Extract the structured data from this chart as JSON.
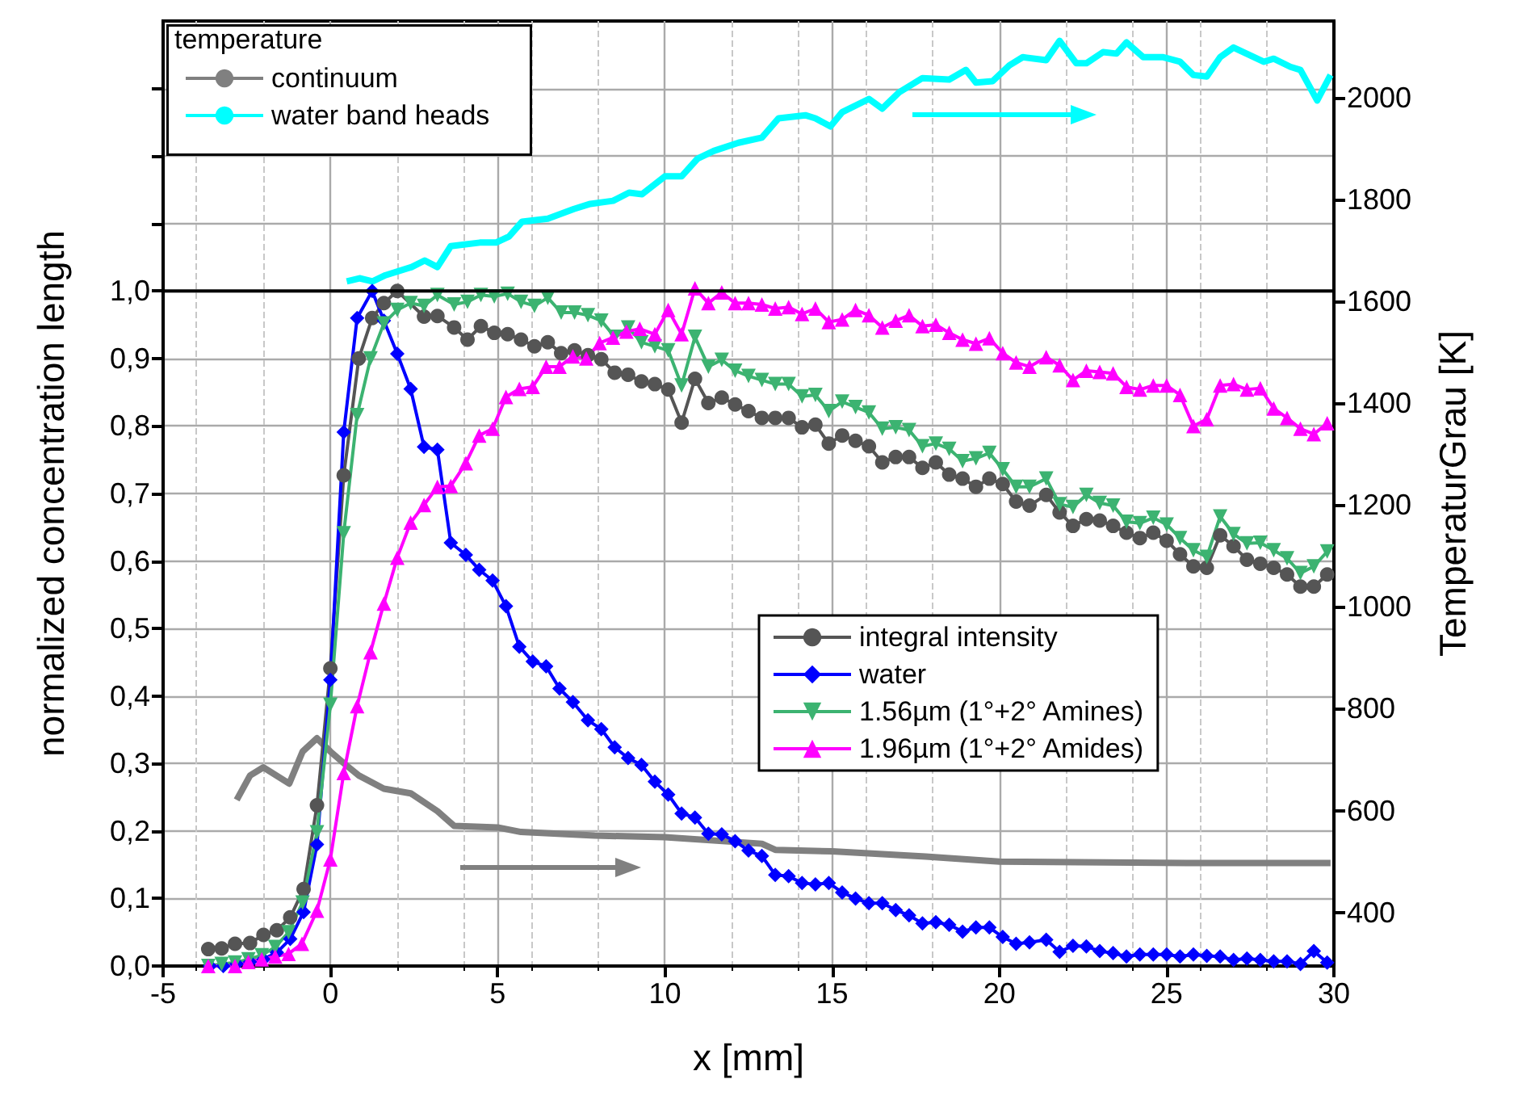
{
  "chart_data": {
    "type": "line",
    "xlabel": "x [mm]",
    "ylabel": "normalized concentration length",
    "y2label": "TemperaturGrau [K]",
    "legend_title": "temperature",
    "xlim": [
      -5,
      30
    ],
    "xticks": [
      -5,
      0,
      5,
      10,
      15,
      20,
      25,
      30
    ],
    "ylim": [
      0,
      1.4
    ],
    "yticks": [
      {
        "value": 0,
        "label": "0,0"
      },
      {
        "value": 0.1,
        "label": "0,1"
      },
      {
        "value": 0.2,
        "label": "0,2"
      },
      {
        "value": 0.3,
        "label": "0,3"
      },
      {
        "value": 0.4,
        "label": "0,4"
      },
      {
        "value": 0.5,
        "label": "0,5"
      },
      {
        "value": 0.6,
        "label": "0,6"
      },
      {
        "value": 0.7,
        "label": "0,7"
      },
      {
        "value": 0.8,
        "label": "0,8"
      },
      {
        "value": 0.9,
        "label": "0,9"
      },
      {
        "value": 1.0,
        "label": "1,0"
      },
      {
        "value": 1.1,
        "label": null
      },
      {
        "value": 1.2,
        "label": null
      },
      {
        "value": 1.3,
        "label": null
      }
    ],
    "y2lim": [
      295,
      2150
    ],
    "y2ticks": [
      400,
      600,
      800,
      1000,
      1200,
      1400,
      1600,
      1800,
      2000
    ],
    "grid": true,
    "legend": "top left",
    "ref_lines": [
      {
        "axis": "y",
        "value": 1.0,
        "color": "#000000"
      }
    ],
    "series": [
      {
        "name": "integral intensity",
        "color": "#555555",
        "marker": "circle",
        "x": [
          -3.65,
          -3.25,
          -2.85,
          -2.4,
          -2.0,
          -1.6,
          -1.2,
          -0.8,
          -0.4,
          0.0,
          0.4,
          0.85,
          1.25,
          1.6,
          2.0,
          2.8,
          3.2,
          3.7,
          4.1,
          4.5,
          4.9,
          5.3,
          5.7,
          6.1,
          6.5,
          6.9,
          7.3,
          7.7,
          8.1,
          8.5,
          8.9,
          9.3,
          9.7,
          10.1,
          10.5,
          10.9,
          11.3,
          11.7,
          12.1,
          12.5,
          12.9,
          13.3,
          13.7,
          14.1,
          14.5,
          14.9,
          15.3,
          15.7,
          16.1,
          16.5,
          16.9,
          17.3,
          17.7,
          18.1,
          18.5,
          18.9,
          19.3,
          19.7,
          20.1,
          20.5,
          20.9,
          21.4,
          21.8,
          22.2,
          22.6,
          23.0,
          23.4,
          23.8,
          24.2,
          24.6,
          25.0,
          25.4,
          25.8,
          26.2,
          26.6,
          27.0,
          27.4,
          27.8,
          28.2,
          28.6,
          29.0,
          29.4,
          29.8
        ],
        "values": [
          0.025,
          0.026,
          0.033,
          0.034,
          0.046,
          0.053,
          0.072,
          0.114,
          0.238,
          0.441,
          0.727,
          0.9,
          0.96,
          0.982,
          1.0,
          0.962,
          0.963,
          0.946,
          0.928,
          0.948,
          0.938,
          0.936,
          0.928,
          0.918,
          0.924,
          0.908,
          0.912,
          0.905,
          0.899,
          0.879,
          0.876,
          0.866,
          0.862,
          0.854,
          0.805,
          0.87,
          0.834,
          0.842,
          0.832,
          0.822,
          0.812,
          0.812,
          0.812,
          0.798,
          0.802,
          0.774,
          0.786,
          0.778,
          0.77,
          0.746,
          0.754,
          0.754,
          0.738,
          0.746,
          0.728,
          0.722,
          0.71,
          0.722,
          0.714,
          0.688,
          0.682,
          0.698,
          0.672,
          0.652,
          0.662,
          0.66,
          0.652,
          0.642,
          0.634,
          0.642,
          0.63,
          0.61,
          0.592,
          0.59,
          0.638,
          0.622,
          0.602,
          0.596,
          0.59,
          0.58,
          0.562,
          0.562,
          0.58
        ]
      },
      {
        "name": "water",
        "color": "#0000ff",
        "marker": "diamond",
        "x": [
          -3.6,
          -3.2,
          -2.8,
          -2.4,
          -2.0,
          -1.6,
          -1.2,
          -0.8,
          -0.4,
          0.0,
          0.4,
          0.8,
          1.25,
          1.6,
          2.0,
          2.4,
          2.8,
          3.2,
          3.6,
          4.05,
          4.45,
          4.85,
          5.25,
          5.65,
          6.05,
          6.45,
          6.85,
          7.25,
          7.7,
          8.1,
          8.5,
          8.9,
          9.3,
          9.7,
          10.1,
          10.5,
          10.9,
          11.3,
          11.7,
          12.1,
          12.5,
          12.9,
          13.3,
          13.7,
          14.1,
          14.5,
          14.9,
          15.3,
          15.7,
          16.1,
          16.5,
          16.9,
          17.3,
          17.7,
          18.1,
          18.5,
          18.9,
          19.3,
          19.7,
          20.1,
          20.5,
          20.9,
          21.4,
          21.8,
          22.2,
          22.6,
          23.0,
          23.4,
          23.8,
          24.2,
          24.6,
          25.0,
          25.4,
          25.8,
          26.2,
          26.6,
          27.0,
          27.4,
          27.8,
          28.2,
          28.6,
          29.0,
          29.4,
          29.8
        ],
        "values": [
          0,
          0,
          0.003,
          0.006,
          0.01,
          0.02,
          0.04,
          0.08,
          0.18,
          0.424,
          0.791,
          0.96,
          1.0,
          0.956,
          0.907,
          0.855,
          0.769,
          0.765,
          0.627,
          0.609,
          0.587,
          0.571,
          0.533,
          0.473,
          0.451,
          0.444,
          0.411,
          0.391,
          0.364,
          0.351,
          0.324,
          0.308,
          0.298,
          0.273,
          0.254,
          0.226,
          0.22,
          0.196,
          0.195,
          0.185,
          0.171,
          0.163,
          0.135,
          0.133,
          0.123,
          0.121,
          0.123,
          0.109,
          0.1,
          0.093,
          0.093,
          0.083,
          0.075,
          0.063,
          0.065,
          0.061,
          0.051,
          0.057,
          0.057,
          0.043,
          0.033,
          0.035,
          0.039,
          0.021,
          0.03,
          0.029,
          0.022,
          0.019,
          0.014,
          0.017,
          0.017,
          0.017,
          0.014,
          0.017,
          0.015,
          0.014,
          0.009,
          0.011,
          0.009,
          0.007,
          0.007,
          0.003,
          0.022,
          0.005
        ]
      },
      {
        "name": "1.56µm (1°+2° Amines)",
        "color": "#3cb371",
        "marker": "triangle-down",
        "x": [
          -3.65,
          -3.25,
          -2.85,
          -2.45,
          -2.05,
          -1.65,
          -1.25,
          -0.83,
          -0.4,
          0.0,
          0.4,
          0.8,
          1.2,
          1.6,
          2.0,
          2.4,
          2.8,
          3.2,
          3.7,
          4.1,
          4.5,
          4.9,
          5.3,
          5.7,
          6.1,
          6.5,
          6.9,
          7.3,
          7.7,
          8.1,
          8.5,
          8.9,
          9.3,
          9.7,
          10.1,
          10.5,
          10.9,
          11.3,
          11.7,
          12.1,
          12.5,
          12.9,
          13.3,
          13.7,
          14.1,
          14.5,
          14.9,
          15.3,
          15.7,
          16.1,
          16.5,
          16.9,
          17.3,
          17.7,
          18.1,
          18.5,
          18.9,
          19.3,
          19.7,
          20.1,
          20.5,
          20.9,
          21.4,
          21.8,
          22.2,
          22.6,
          23.0,
          23.4,
          23.8,
          24.2,
          24.6,
          25.0,
          25.4,
          25.8,
          26.2,
          26.6,
          27.0,
          27.4,
          27.8,
          28.2,
          28.6,
          29.0,
          29.4,
          29.8
        ],
        "values": [
          0,
          0.003,
          0.005,
          0.01,
          0.016,
          0.028,
          0.05,
          0.094,
          0.198,
          0.387,
          0.641,
          0.816,
          0.9,
          0.952,
          0.972,
          0.982,
          0.978,
          0.994,
          0.98,
          0.984,
          0.994,
          0.992,
          0.996,
          0.984,
          0.978,
          0.99,
          0.968,
          0.968,
          0.964,
          0.956,
          0.932,
          0.946,
          0.924,
          0.918,
          0.912,
          0.86,
          0.932,
          0.888,
          0.898,
          0.882,
          0.874,
          0.868,
          0.862,
          0.862,
          0.844,
          0.846,
          0.822,
          0.836,
          0.828,
          0.82,
          0.796,
          0.798,
          0.794,
          0.77,
          0.774,
          0.766,
          0.748,
          0.752,
          0.76,
          0.736,
          0.71,
          0.71,
          0.722,
          0.684,
          0.68,
          0.698,
          0.686,
          0.682,
          0.658,
          0.656,
          0.664,
          0.654,
          0.634,
          0.616,
          0.606,
          0.666,
          0.64,
          0.626,
          0.627,
          0.616,
          0.604,
          0.582,
          0.592,
          0.614
        ]
      },
      {
        "name": "1.96µm (1°+2° Amides)",
        "color": "#ff00ff",
        "marker": "triangle",
        "x": [
          -3.65,
          -2.85,
          -2.45,
          -2.05,
          -1.65,
          -1.25,
          -0.85,
          -0.4,
          0.0,
          0.4,
          0.8,
          1.2,
          1.6,
          2.0,
          2.4,
          2.8,
          3.2,
          3.6,
          4.05,
          4.45,
          4.85,
          5.25,
          5.65,
          6.05,
          6.45,
          6.85,
          7.25,
          7.65,
          8.05,
          8.45,
          8.85,
          9.25,
          9.7,
          10.1,
          10.5,
          10.9,
          11.3,
          11.7,
          12.1,
          12.5,
          12.9,
          13.3,
          13.7,
          14.1,
          14.5,
          14.9,
          15.3,
          15.7,
          16.1,
          16.5,
          16.9,
          17.3,
          17.7,
          18.1,
          18.5,
          18.9,
          19.3,
          19.7,
          20.1,
          20.5,
          20.9,
          21.4,
          21.8,
          22.2,
          22.6,
          23.0,
          23.4,
          23.8,
          24.2,
          24.6,
          25.0,
          25.4,
          25.8,
          26.2,
          26.6,
          27.0,
          27.4,
          27.8,
          28.2,
          28.6,
          29.0,
          29.4,
          29.8
        ],
        "values": [
          0,
          0,
          0.006,
          0.01,
          0.014,
          0.018,
          0.033,
          0.082,
          0.158,
          0.286,
          0.385,
          0.465,
          0.537,
          0.605,
          0.657,
          0.683,
          0.71,
          0.711,
          0.745,
          0.786,
          0.796,
          0.843,
          0.855,
          0.858,
          0.888,
          0.888,
          0.903,
          0.9,
          0.923,
          0.931,
          0.94,
          0.944,
          0.936,
          0.972,
          0.936,
          1.004,
          0.982,
          0.998,
          0.982,
          0.982,
          0.98,
          0.974,
          0.976,
          0.966,
          0.974,
          0.954,
          0.958,
          0.972,
          0.964,
          0.946,
          0.956,
          0.964,
          0.948,
          0.95,
          0.938,
          0.928,
          0.922,
          0.93,
          0.908,
          0.894,
          0.888,
          0.902,
          0.89,
          0.868,
          0.882,
          0.88,
          0.878,
          0.858,
          0.854,
          0.86,
          0.86,
          0.846,
          0.8,
          0.81,
          0.86,
          0.862,
          0.854,
          0.856,
          0.826,
          0.812,
          0.796,
          0.788,
          0.804
        ]
      },
      {
        "name": "continuum",
        "color": "#808080",
        "marker": "none",
        "axis": "y2",
        "x": [
          -2.8,
          -2.4,
          -2.0,
          -1.23,
          -0.83,
          -0.4,
          0,
          0.44,
          0.85,
          1.6,
          2.4,
          3.2,
          3.7,
          5.0,
          5.7,
          7.9,
          10,
          12.9,
          13.3,
          15,
          17.8,
          20,
          25.6,
          29.9
        ],
        "values": [
          621,
          669,
          685,
          653,
          716,
          742,
          716,
          691,
          669,
          643,
          634,
          599,
          570,
          567,
          558,
          551,
          548,
          535,
          523,
          520,
          510,
          500,
          497,
          497
        ]
      },
      {
        "name": "water band heads",
        "color": "#00ffff",
        "marker": "none",
        "axis": "y2",
        "x": [
          0.49,
          0.87,
          1.26,
          1.65,
          2.43,
          2.82,
          3.2,
          3.6,
          4.47,
          4.95,
          5.34,
          5.73,
          6.5,
          7.28,
          7.77,
          8.45,
          8.93,
          9.32,
          10.0,
          10.5,
          10.98,
          11.46,
          12.2,
          12.9,
          13.4,
          14.2,
          14.5,
          14.95,
          15.3,
          16.1,
          16.5,
          17.0,
          17.7,
          18.5,
          19.0,
          19.3,
          19.8,
          20.3,
          20.7,
          21.4,
          21.8,
          22.3,
          22.6,
          23.1,
          23.5,
          23.8,
          24.3,
          24.9,
          25.4,
          25.8,
          26.2,
          26.6,
          27.0,
          27.9,
          28.2,
          28.7,
          29.0,
          29.5,
          29.9
        ],
        "values": [
          1639,
          1645,
          1639,
          1651,
          1667,
          1680,
          1667,
          1708,
          1715,
          1715,
          1727,
          1756,
          1762,
          1781,
          1791,
          1797,
          1813,
          1810,
          1845,
          1845,
          1880,
          1895,
          1911,
          1921,
          1959,
          1965,
          1959,
          1943,
          1971,
          1997,
          1978,
          2010,
          2038,
          2035,
          2054,
          2029,
          2032,
          2063,
          2079,
          2073,
          2111,
          2067,
          2067,
          2089,
          2086,
          2108,
          2079,
          2079,
          2070,
          2044,
          2041,
          2079,
          2098,
          2070,
          2076,
          2060,
          2054,
          1994,
          2044
        ]
      }
    ]
  }
}
